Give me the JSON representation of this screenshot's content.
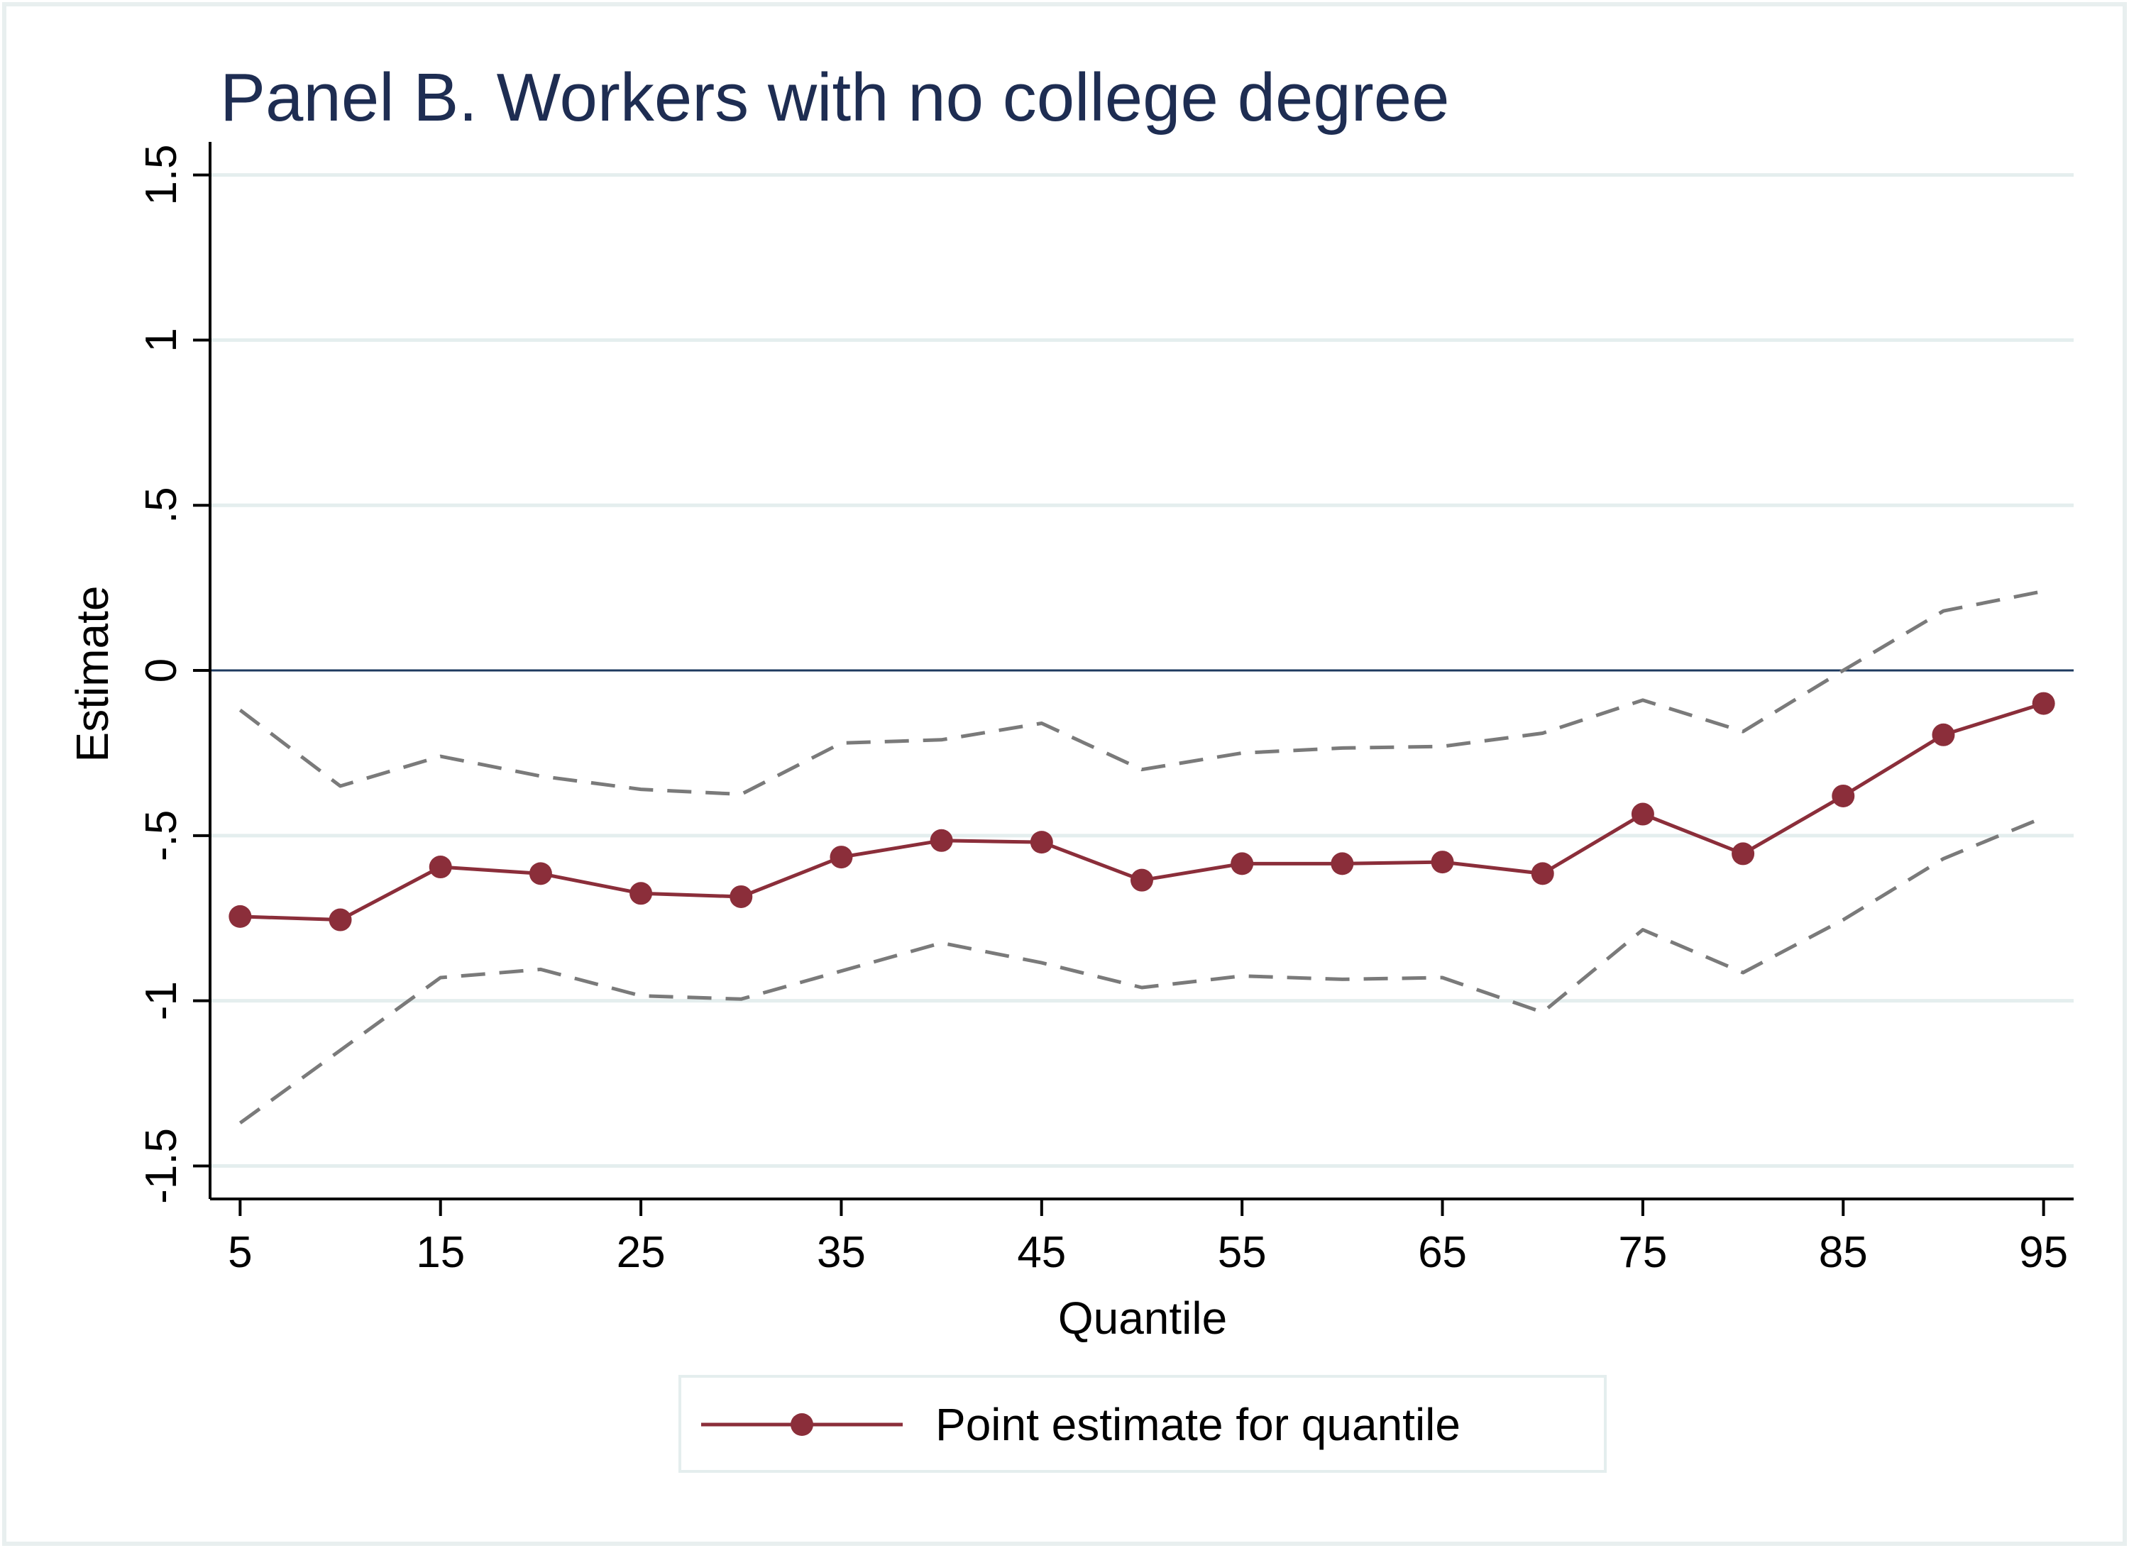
{
  "chart_data": {
    "type": "line",
    "title": "Panel B. Workers with no college degree",
    "xlabel": "Quantile",
    "ylabel": "Estimate",
    "xlim": [
      3.5,
      96.5
    ],
    "ylim": [
      -1.6,
      1.6
    ],
    "x_ticks": [
      5,
      15,
      25,
      35,
      45,
      55,
      65,
      75,
      85,
      95
    ],
    "x_tick_labels": [
      "5",
      "15",
      "25",
      "35",
      "45",
      "55",
      "65",
      "75",
      "85",
      "95"
    ],
    "y_ticks": [
      -1.5,
      -1,
      -0.5,
      0,
      0.5,
      1,
      1.5
    ],
    "y_tick_labels": [
      "-1.5",
      "-1",
      "-.5",
      "0",
      ".5",
      "1",
      "1.5"
    ],
    "grid": true,
    "reference_line_y": 0,
    "x": [
      5,
      10,
      15,
      20,
      25,
      30,
      35,
      40,
      45,
      50,
      55,
      60,
      65,
      70,
      75,
      80,
      85,
      90,
      95
    ],
    "series": [
      {
        "name": "Point estimate for quantile",
        "role": "point",
        "color": "#8b2e3a",
        "values": [
          -0.745,
          -0.755,
          -0.595,
          -0.615,
          -0.675,
          -0.685,
          -0.565,
          -0.515,
          -0.52,
          -0.635,
          -0.585,
          -0.585,
          -0.58,
          -0.615,
          -0.435,
          -0.555,
          -0.38,
          -0.195,
          -0.1
        ]
      },
      {
        "role": "upper",
        "color": "#7a7a7a",
        "values": [
          -0.12,
          -0.35,
          -0.26,
          -0.32,
          -0.36,
          -0.375,
          -0.22,
          -0.21,
          -0.16,
          -0.3,
          -0.25,
          -0.235,
          -0.23,
          -0.19,
          -0.09,
          -0.185,
          0.0,
          0.18,
          0.24
        ]
      },
      {
        "role": "lower",
        "color": "#7a7a7a",
        "values": [
          -1.37,
          -1.15,
          -0.93,
          -0.905,
          -0.985,
          -0.995,
          -0.91,
          -0.825,
          -0.885,
          -0.96,
          -0.925,
          -0.935,
          -0.93,
          -1.035,
          -0.785,
          -0.915,
          -0.755,
          -0.57,
          -0.445
        ]
      }
    ],
    "legend": {
      "position": "bottom",
      "entries": [
        "Point estimate for quantile"
      ]
    },
    "colors": {
      "background": "#ffffff",
      "gridline": "#e4eeee",
      "zero_line": "#1e3a5f",
      "title": "#1e2d52"
    }
  }
}
